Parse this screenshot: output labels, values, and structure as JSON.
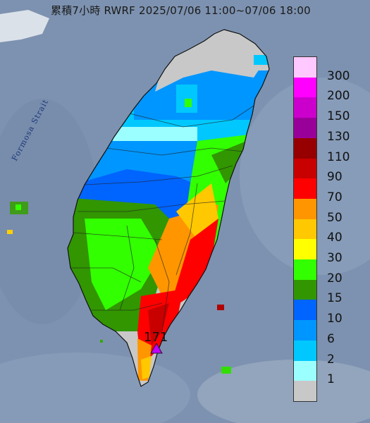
{
  "map": {
    "title": "累積7小時 RWRF 2025/07/06 11:00~07/06 18:00",
    "strait_label": "Formosa Strait",
    "max_value_label": "171",
    "max_marker_icon": "triangle-icon"
  },
  "legend": {
    "items": [
      {
        "label": "300",
        "color": "#ffc8ff"
      },
      {
        "label": "200",
        "color": "#ff00ff"
      },
      {
        "label": "150",
        "color": "#cc00cc"
      },
      {
        "label": "130",
        "color": "#990099"
      },
      {
        "label": "110",
        "color": "#960000"
      },
      {
        "label": "90",
        "color": "#c80000"
      },
      {
        "label": "70",
        "color": "#ff0000"
      },
      {
        "label": "50",
        "color": "#ff9600"
      },
      {
        "label": "40",
        "color": "#ffc800"
      },
      {
        "label": "30",
        "color": "#ffff00"
      },
      {
        "label": "20",
        "color": "#32ff00"
      },
      {
        "label": "15",
        "color": "#319600"
      },
      {
        "label": "10",
        "color": "#0064ff"
      },
      {
        "label": "6",
        "color": "#0096ff"
      },
      {
        "label": "2",
        "color": "#00c8ff"
      },
      {
        "label": "1",
        "color": "#9bffff"
      },
      {
        "label": "",
        "color": "#c8c8c8"
      }
    ]
  }
}
